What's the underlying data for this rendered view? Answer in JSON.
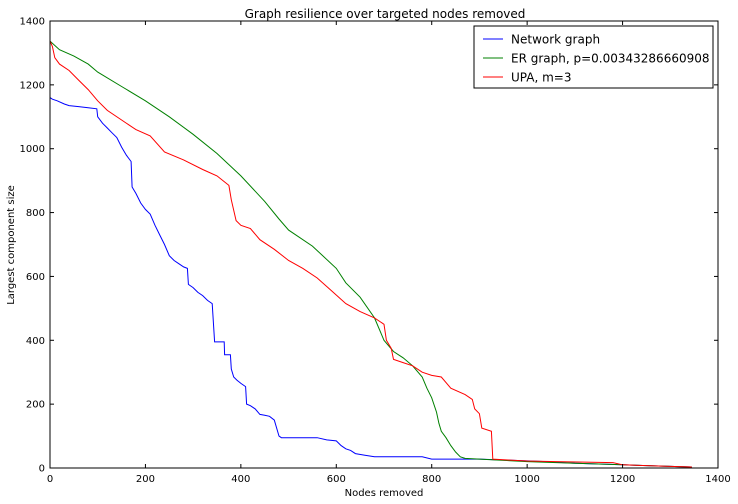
{
  "chart_data": {
    "type": "line",
    "title": "Graph resilience over targeted nodes removed",
    "xlabel": "Nodes removed",
    "ylabel": "Largest component size",
    "xlim": [
      0,
      1400
    ],
    "ylim": [
      0,
      1400
    ],
    "x_ticks": [
      "0",
      "200",
      "400",
      "600",
      "800",
      "1000",
      "1200",
      "1400"
    ],
    "y_ticks": [
      "0",
      "200",
      "400",
      "600",
      "800",
      "1000",
      "1200",
      "1400"
    ],
    "grid": false,
    "legend_position": "top-right",
    "series": [
      {
        "name": "Network graph",
        "color": "#0000ff",
        "points": [
          [
            0,
            1160
          ],
          [
            5,
            1155
          ],
          [
            15,
            1150
          ],
          [
            30,
            1140
          ],
          [
            40,
            1135
          ],
          [
            60,
            1132
          ],
          [
            80,
            1128
          ],
          [
            98,
            1125
          ],
          [
            100,
            1100
          ],
          [
            110,
            1080
          ],
          [
            120,
            1065
          ],
          [
            130,
            1050
          ],
          [
            140,
            1035
          ],
          [
            150,
            1005
          ],
          [
            160,
            980
          ],
          [
            170,
            960
          ],
          [
            172,
            880
          ],
          [
            180,
            860
          ],
          [
            190,
            830
          ],
          [
            200,
            810
          ],
          [
            210,
            795
          ],
          [
            220,
            760
          ],
          [
            230,
            730
          ],
          [
            240,
            700
          ],
          [
            250,
            665
          ],
          [
            260,
            650
          ],
          [
            270,
            640
          ],
          [
            280,
            630
          ],
          [
            288,
            625
          ],
          [
            290,
            575
          ],
          [
            300,
            565
          ],
          [
            310,
            550
          ],
          [
            320,
            540
          ],
          [
            330,
            525
          ],
          [
            340,
            515
          ],
          [
            345,
            395
          ],
          [
            365,
            395
          ],
          [
            366,
            355
          ],
          [
            378,
            355
          ],
          [
            380,
            310
          ],
          [
            385,
            285
          ],
          [
            392,
            275
          ],
          [
            400,
            265
          ],
          [
            410,
            255
          ],
          [
            412,
            200
          ],
          [
            420,
            195
          ],
          [
            430,
            185
          ],
          [
            440,
            168
          ],
          [
            450,
            165
          ],
          [
            460,
            162
          ],
          [
            470,
            150
          ],
          [
            480,
            100
          ],
          [
            485,
            95
          ],
          [
            560,
            95
          ],
          [
            580,
            88
          ],
          [
            600,
            85
          ],
          [
            610,
            70
          ],
          [
            620,
            60
          ],
          [
            630,
            55
          ],
          [
            640,
            45
          ],
          [
            660,
            40
          ],
          [
            680,
            35
          ],
          [
            780,
            35
          ],
          [
            800,
            28
          ],
          [
            900,
            28
          ],
          [
            1040,
            20
          ],
          [
            1100,
            15
          ],
          [
            1200,
            10
          ],
          [
            1300,
            5
          ],
          [
            1345,
            3
          ]
        ]
      },
      {
        "name": "ER graph, p=0.00343286660908",
        "color": "#008000",
        "points": [
          [
            0,
            1337
          ],
          [
            20,
            1310
          ],
          [
            50,
            1290
          ],
          [
            80,
            1265
          ],
          [
            100,
            1240
          ],
          [
            150,
            1195
          ],
          [
            200,
            1150
          ],
          [
            250,
            1100
          ],
          [
            300,
            1045
          ],
          [
            350,
            985
          ],
          [
            400,
            915
          ],
          [
            450,
            835
          ],
          [
            480,
            780
          ],
          [
            500,
            745
          ],
          [
            550,
            695
          ],
          [
            600,
            625
          ],
          [
            620,
            580
          ],
          [
            650,
            535
          ],
          [
            680,
            470
          ],
          [
            700,
            400
          ],
          [
            720,
            365
          ],
          [
            740,
            345
          ],
          [
            760,
            320
          ],
          [
            780,
            285
          ],
          [
            790,
            250
          ],
          [
            800,
            220
          ],
          [
            810,
            175
          ],
          [
            815,
            140
          ],
          [
            820,
            115
          ],
          [
            830,
            95
          ],
          [
            840,
            70
          ],
          [
            850,
            50
          ],
          [
            860,
            35
          ],
          [
            870,
            30
          ],
          [
            900,
            28
          ],
          [
            1000,
            20
          ],
          [
            1100,
            15
          ],
          [
            1200,
            10
          ],
          [
            1300,
            5
          ],
          [
            1345,
            3
          ]
        ]
      },
      {
        "name": "UPA, m=3",
        "color": "#ff0000",
        "points": [
          [
            0,
            1337
          ],
          [
            5,
            1320
          ],
          [
            10,
            1285
          ],
          [
            20,
            1265
          ],
          [
            40,
            1245
          ],
          [
            60,
            1215
          ],
          [
            80,
            1185
          ],
          [
            100,
            1150
          ],
          [
            120,
            1120
          ],
          [
            150,
            1090
          ],
          [
            180,
            1060
          ],
          [
            210,
            1040
          ],
          [
            240,
            990
          ],
          [
            280,
            965
          ],
          [
            320,
            935
          ],
          [
            350,
            915
          ],
          [
            375,
            885
          ],
          [
            380,
            840
          ],
          [
            390,
            775
          ],
          [
            400,
            760
          ],
          [
            420,
            750
          ],
          [
            440,
            715
          ],
          [
            470,
            685
          ],
          [
            500,
            650
          ],
          [
            530,
            625
          ],
          [
            560,
            595
          ],
          [
            590,
            555
          ],
          [
            620,
            515
          ],
          [
            650,
            490
          ],
          [
            680,
            470
          ],
          [
            700,
            450
          ],
          [
            705,
            400
          ],
          [
            715,
            375
          ],
          [
            720,
            340
          ],
          [
            740,
            330
          ],
          [
            760,
            320
          ],
          [
            780,
            300
          ],
          [
            800,
            290
          ],
          [
            820,
            285
          ],
          [
            840,
            250
          ],
          [
            870,
            230
          ],
          [
            885,
            215
          ],
          [
            890,
            185
          ],
          [
            900,
            170
          ],
          [
            905,
            125
          ],
          [
            925,
            115
          ],
          [
            928,
            28
          ],
          [
            960,
            25
          ],
          [
            1000,
            22
          ],
          [
            1060,
            20
          ],
          [
            1180,
            17
          ],
          [
            1200,
            10
          ],
          [
            1300,
            5
          ],
          [
            1345,
            3
          ]
        ]
      }
    ]
  }
}
